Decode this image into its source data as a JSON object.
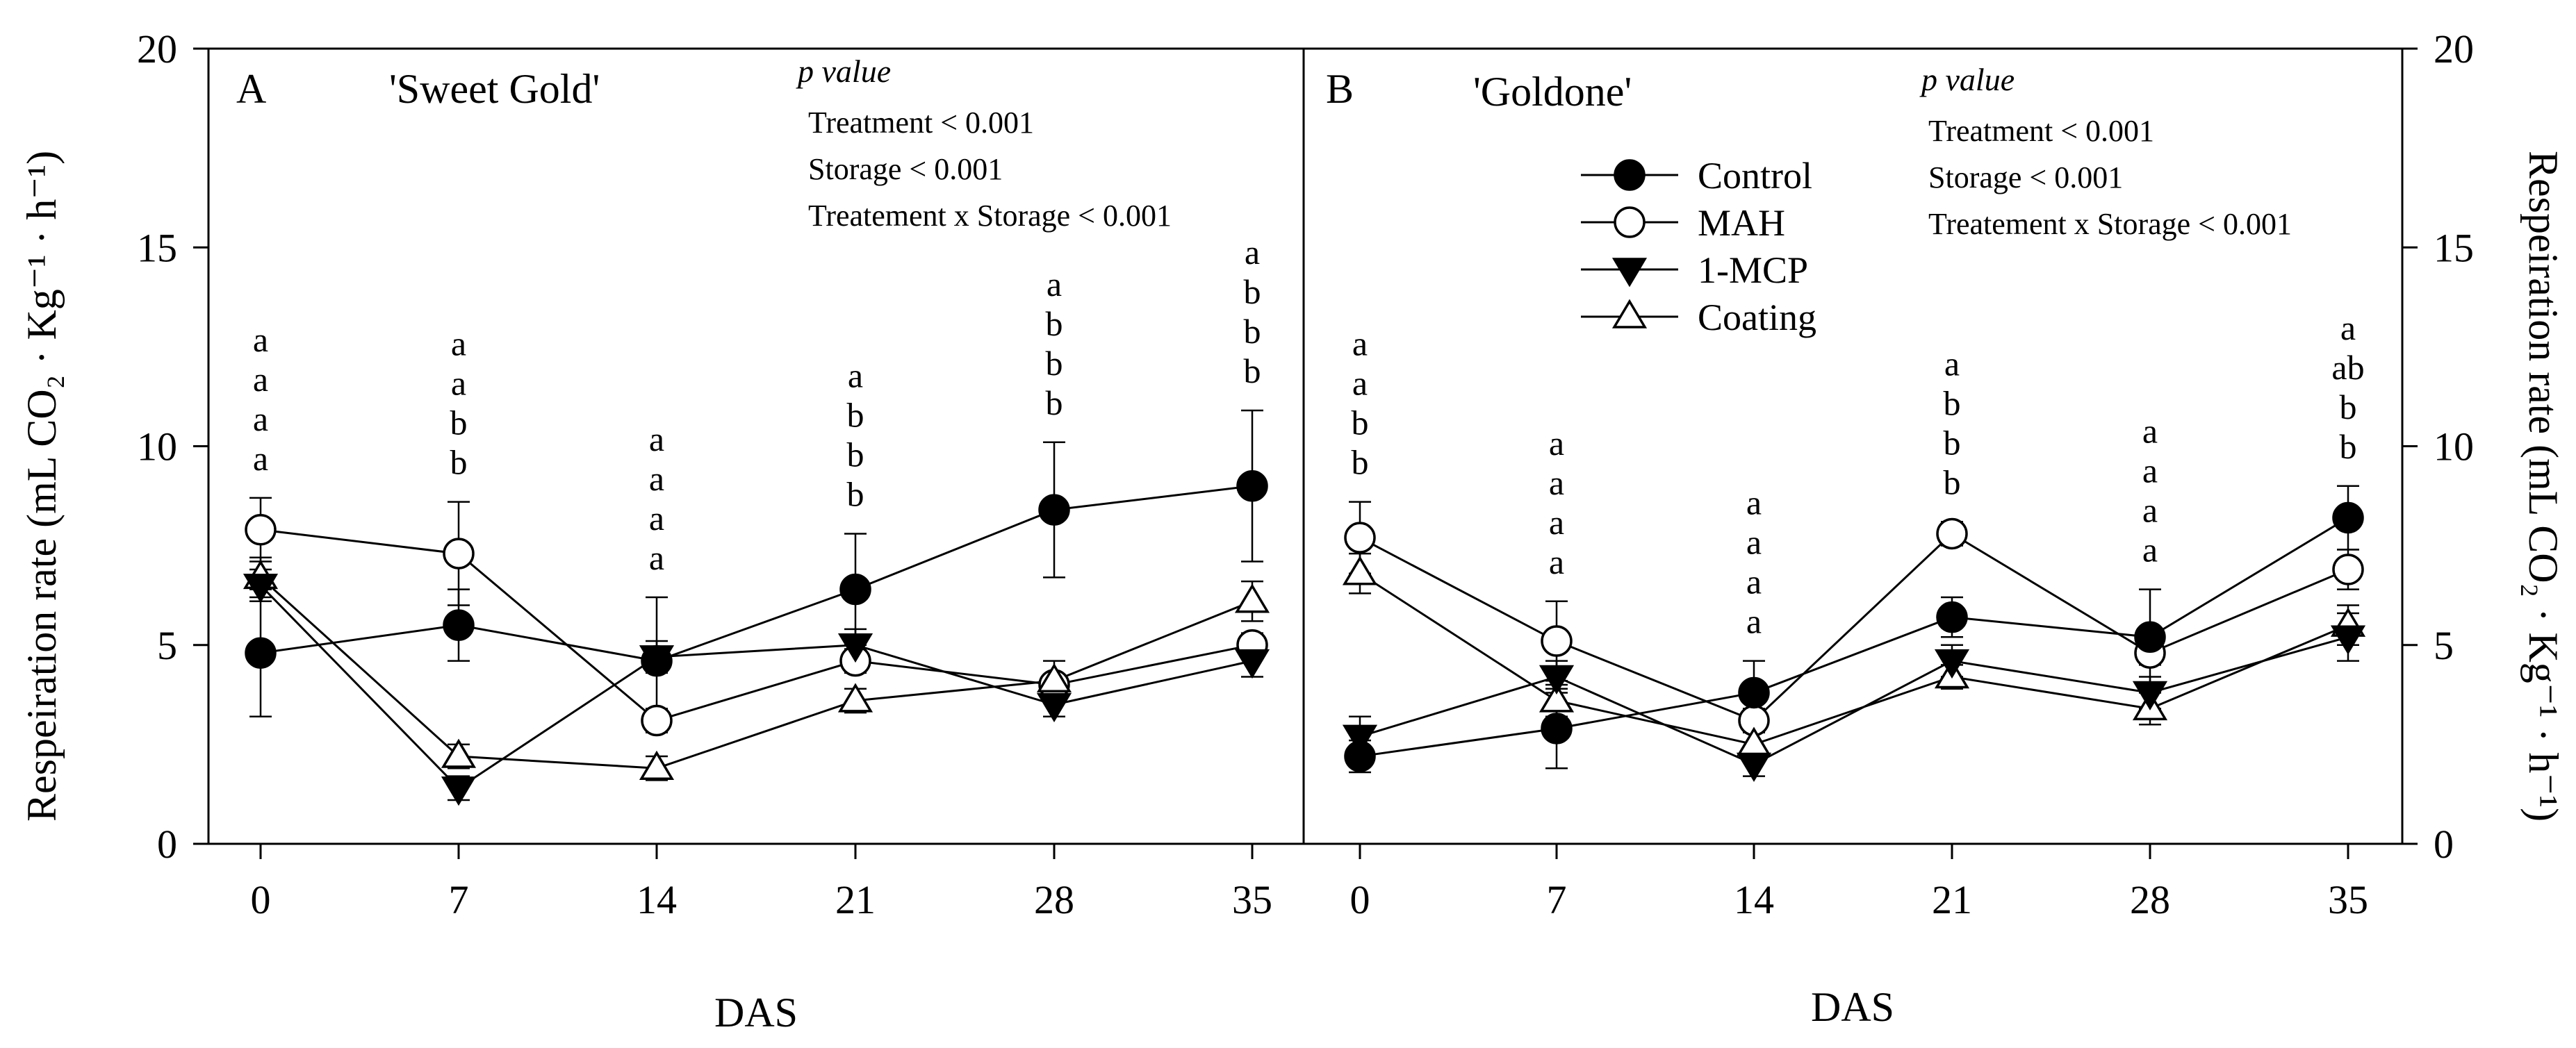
{
  "chart_data": {
    "type": "line",
    "x": [
      0,
      7,
      14,
      21,
      28,
      35
    ],
    "xlabel": "DAS",
    "ylabel_left": "Respeiration rate (mL CO₂ · Kg⁻¹ · h⁻¹)",
    "ylabel_right": "Respeiration rate (mL CO₂ · Kg⁻¹ · h⁻¹)",
    "ylim": [
      0,
      20
    ],
    "yticks": [
      0,
      5,
      10,
      15,
      20
    ],
    "legend": {
      "placement": "upper-left of panel B",
      "entries": [
        "Control",
        "MAH",
        "1-MCP",
        "Coating"
      ]
    },
    "series_styles": {
      "Control": {
        "marker": "circle",
        "fill": "#000000"
      },
      "MAH": {
        "marker": "circle",
        "fill": "#ffffff"
      },
      "1-MCP": {
        "marker": "triangle-down",
        "fill": "#000000"
      },
      "Coating": {
        "marker": "triangle-up",
        "fill": "#ffffff"
      }
    },
    "panels": [
      {
        "label": "A",
        "title": "'Sweet Gold'",
        "pvalue": {
          "heading": "p value",
          "lines": [
            "Treatment < 0.001",
            "Storage < 0.001",
            "Treatement x Storage  < 0.001"
          ]
        },
        "series": [
          {
            "name": "Control",
            "values": [
              4.8,
              5.5,
              4.6,
              6.4,
              8.4,
              9.0
            ],
            "errors": [
              1.6,
              0.9,
              1.6,
              1.4,
              1.7,
              1.9
            ]
          },
          {
            "name": "MAH",
            "values": [
              7.9,
              7.3,
              3.1,
              4.6,
              4.0,
              5.0
            ],
            "errors": [
              0.8,
              1.3,
              0.3,
              0.3,
              0.2,
              0.3
            ]
          },
          {
            "name": "1-MCP",
            "values": [
              6.5,
              1.4,
              4.7,
              5.0,
              3.5,
              4.6
            ],
            "errors": [
              0.4,
              0.3,
              0.4,
              0.4,
              0.3,
              0.4
            ]
          },
          {
            "name": "Coating",
            "values": [
              6.7,
              2.2,
              1.9,
              3.6,
              4.1,
              6.1
            ],
            "errors": [
              0.5,
              0.3,
              0.3,
              0.3,
              0.5,
              0.5
            ]
          }
        ],
        "sig_letters": [
          [
            "a",
            "a",
            "a",
            "a"
          ],
          [
            "a",
            "a",
            "b",
            "b"
          ],
          [
            "a",
            "a",
            "a",
            "a"
          ],
          [
            "a",
            "b",
            "b",
            "b"
          ],
          [
            "a",
            "b",
            "b",
            "b"
          ],
          [
            "a",
            "b",
            "b",
            "b"
          ]
        ]
      },
      {
        "label": "B",
        "title": "'Goldone'",
        "pvalue": {
          "heading": "p value",
          "lines": [
            "Treatment < 0.001",
            "Storage < 0.001",
            "Treatement x Storage  < 0.001"
          ]
        },
        "series": [
          {
            "name": "Control",
            "values": [
              2.2,
              2.9,
              3.8,
              5.7,
              5.2,
              8.2
            ],
            "errors": [
              0.4,
              1.0,
              0.8,
              0.5,
              1.2,
              0.8
            ]
          },
          {
            "name": "MAH",
            "values": [
              7.7,
              5.1,
              3.1,
              7.8,
              4.8,
              6.9
            ],
            "errors": [
              0.9,
              1.0,
              0.3,
              0.3,
              0.3,
              0.5
            ]
          },
          {
            "name": "1-MCP",
            "values": [
              2.7,
              4.2,
              2.0,
              4.6,
              3.8,
              5.2
            ],
            "errors": [
              0.5,
              0.4,
              0.3,
              0.4,
              0.4,
              0.6
            ]
          },
          {
            "name": "Coating",
            "values": [
              6.8,
              3.6,
              2.5,
              4.2,
              3.4,
              5.5
            ],
            "errors": [
              0.5,
              0.4,
              0.3,
              0.3,
              0.4,
              0.5
            ]
          }
        ],
        "sig_letters": [
          [
            "a",
            "a",
            "b",
            "b"
          ],
          [
            "a",
            "a",
            "a",
            "a"
          ],
          [
            "a",
            "a",
            "a",
            "a"
          ],
          [
            "a",
            "b",
            "b",
            "b"
          ],
          [
            "a",
            "a",
            "a",
            "a"
          ],
          [
            "a",
            "ab",
            "b",
            "b"
          ]
        ]
      }
    ]
  }
}
